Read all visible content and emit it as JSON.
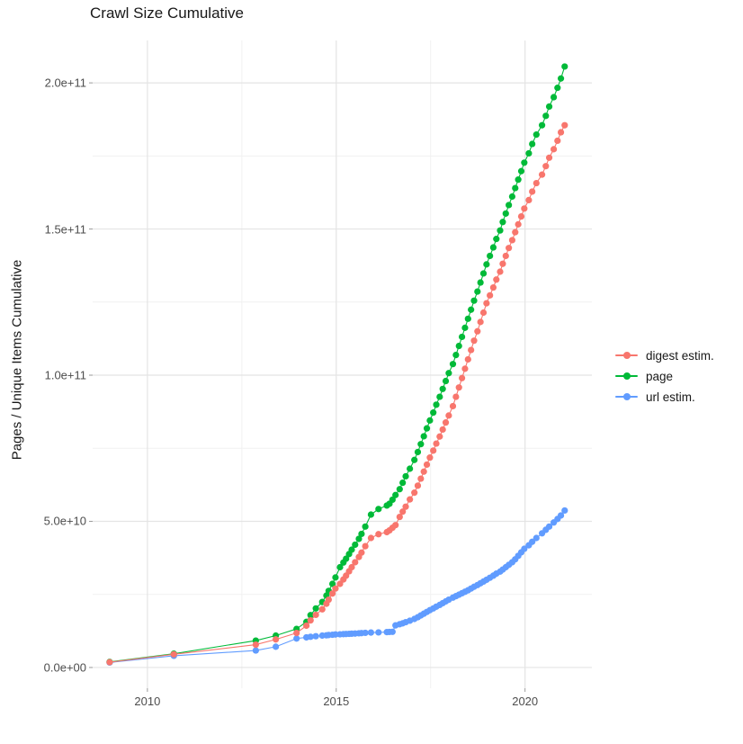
{
  "title": "Crawl Size Cumulative",
  "axes": {
    "y_label": "Pages / Unique Items Cumulative",
    "x_tick_labels": [
      "2010",
      "2015",
      "2020"
    ],
    "y_tick_labels": [
      "0.0e+00",
      "5.0e+10",
      "1.0e+11",
      "1.5e+11",
      "2.0e+11"
    ]
  },
  "legend": {
    "position": "right",
    "items": [
      {
        "label": "digest estim.",
        "color": "#F8766D"
      },
      {
        "label": "page",
        "color": "#00BA38"
      },
      {
        "label": "url estim.",
        "color": "#619CFF"
      }
    ]
  },
  "style_colors": {
    "major_grid": "#e4e4e4",
    "minor_grid": "#f1f1f1",
    "tick_mark": "#9a9a9a",
    "tick_text": "#4d4d4d",
    "title_text": "#181818"
  },
  "chart_data": {
    "type": "scatter",
    "title": "Crawl Size Cumulative",
    "xlabel": "",
    "ylabel": "Pages / Unique Items Cumulative",
    "grid": "on",
    "legend_position": "right",
    "xlim": [
      2008.55,
      2021.77
    ],
    "ylim": [
      -7100000000.0,
      214500000000.0
    ],
    "x_tick_values": [
      2010,
      2015,
      2020
    ],
    "x_tick_labels": [
      "2010",
      "2015",
      "2020"
    ],
    "x_minor_ticks": [
      2012.5,
      2017.5
    ],
    "y_tick_values": [
      0,
      50000000000.0,
      100000000000.0,
      150000000000.0,
      200000000000.0
    ],
    "y_tick_labels": [
      "0.0e+00",
      "5.0e+10",
      "1.0e+11",
      "1.5e+11",
      "2.0e+11"
    ],
    "y_minor_ticks": [
      25000000000.0,
      75000000000.0,
      125000000000.0,
      175000000000.0
    ],
    "x": [
      2009.0,
      2010.7,
      2012.87,
      2013.4,
      2013.95,
      2014.21,
      2014.32,
      2014.46,
      2014.63,
      2014.74,
      2014.8,
      2014.9,
      2014.98,
      2015.1,
      2015.19,
      2015.26,
      2015.34,
      2015.41,
      2015.5,
      2015.6,
      2015.67,
      2015.77,
      2015.92,
      2016.12,
      2016.34,
      2016.41,
      2016.49,
      2016.57,
      2016.68,
      2016.76,
      2016.84,
      2016.95,
      2017.07,
      2017.16,
      2017.24,
      2017.32,
      2017.4,
      2017.48,
      2017.57,
      2017.65,
      2017.74,
      2017.82,
      2017.9,
      2017.98,
      2018.09,
      2018.17,
      2018.25,
      2018.33,
      2018.41,
      2018.49,
      2018.57,
      2018.65,
      2018.74,
      2018.82,
      2018.9,
      2018.98,
      2019.07,
      2019.16,
      2019.24,
      2019.34,
      2019.41,
      2019.49,
      2019.57,
      2019.66,
      2019.74,
      2019.82,
      2019.9,
      2019.98,
      2020.1,
      2020.19,
      2020.3,
      2020.45,
      2020.55,
      2020.64,
      2020.76,
      2020.86,
      2020.95,
      2021.05
    ],
    "series": [
      {
        "name": "url estim.",
        "color": "#619CFF",
        "values": [
          1700000000.0,
          4000000000.0,
          5800000000.0,
          7100000000.0,
          9900000000.0,
          10300000000.0,
          10500000000.0,
          10700000000.0,
          10900000000.0,
          11000000000.0,
          11100000000.0,
          11200000000.0,
          11300000000.0,
          11350000000.0,
          11400000000.0,
          11450000000.0,
          11500000000.0,
          11550000000.0,
          11600000000.0,
          11700000000.0,
          11750000000.0,
          11850000000.0,
          11950000000.0,
          12000000000.0,
          12100000000.0,
          12150000000.0,
          12200000000.0,
          14400000000.0,
          14800000000.0,
          15100000000.0,
          15500000000.0,
          16000000000.0,
          16600000000.0,
          17200000000.0,
          17800000000.0,
          18400000000.0,
          19000000000.0,
          19600000000.0,
          20200000000.0,
          20800000000.0,
          21400000000.0,
          22000000000.0,
          22600000000.0,
          23200000000.0,
          23900000000.0,
          24400000000.0,
          24900000000.0,
          25400000000.0,
          25900000000.0,
          26400000000.0,
          27000000000.0,
          27600000000.0,
          28200000000.0,
          28800000000.0,
          29400000000.0,
          30000000000.0,
          30700000000.0,
          31400000000.0,
          32100000000.0,
          32800000000.0,
          33500000000.0,
          34300000000.0,
          35100000000.0,
          36000000000.0,
          37000000000.0,
          38200000000.0,
          39400000000.0,
          40600000000.0,
          41800000000.0,
          43000000000.0,
          44300000000.0,
          45900000000.0,
          47100000000.0,
          48200000000.0,
          49600000000.0,
          50800000000.0,
          52000000000.0,
          53700000000.0
        ]
      },
      {
        "name": "page",
        "color": "#00BA38",
        "values": [
          1900000000.0,
          4700000000.0,
          9200000000.0,
          10900000000.0,
          13200000000.0,
          15600000000.0,
          17900000000.0,
          20200000000.0,
          22400000000.0,
          24600000000.0,
          26200000000.0,
          28600000000.0,
          30800000000.0,
          34300000000.0,
          35900000000.0,
          37200000000.0,
          38800000000.0,
          40300000000.0,
          42000000000.0,
          44000000000.0,
          45700000000.0,
          48200000000.0,
          52300000000.0,
          54200000000.0,
          55400000000.0,
          56000000000.0,
          57400000000.0,
          59000000000.0,
          61000000000.0,
          63200000000.0,
          65400000000.0,
          68000000000.0,
          71000000000.0,
          73700000000.0,
          76400000000.0,
          79100000000.0,
          81800000000.0,
          84500000000.0,
          87200000000.0,
          89900000000.0,
          92600000000.0,
          95300000000.0,
          98000000000.0,
          100700000000.0,
          103800000000.0,
          106900000000.0,
          110000000000.0,
          113100000000.0,
          116200000000.0,
          119300000000.0,
          122400000000.0,
          125500000000.0,
          128600000000.0,
          131700000000.0,
          134800000000.0,
          137900000000.0,
          140800000000.0,
          143700000000.0,
          146600000000.0,
          149500000000.0,
          152400000000.0,
          155300000000.0,
          158200000000.0,
          161100000000.0,
          164000000000.0,
          166900000000.0,
          169800000000.0,
          172700000000.0,
          175900000000.0,
          179100000000.0,
          182300000000.0,
          185500000000.0,
          188700000000.0,
          191900000000.0,
          195100000000.0,
          198300000000.0,
          201500000000.0,
          205600000000.0
        ]
      },
      {
        "name": "digest estim.",
        "color": "#F8766D",
        "values": [
          1800000000.0,
          4500000000.0,
          7800000000.0,
          9600000000.0,
          11800000000.0,
          14300000000.0,
          16100000000.0,
          18000000000.0,
          19900000000.0,
          21800000000.0,
          23200000000.0,
          25300000000.0,
          27000000000.0,
          28600000000.0,
          30100000000.0,
          31400000000.0,
          32900000000.0,
          34300000000.0,
          36000000000.0,
          37800000000.0,
          39300000000.0,
          41500000000.0,
          44300000000.0,
          45600000000.0,
          46300000000.0,
          46900000000.0,
          47800000000.0,
          48700000000.0,
          51500000000.0,
          53300000000.0,
          55000000000.0,
          57500000000.0,
          59800000000.0,
          62200000000.0,
          64600000000.0,
          67000000000.0,
          69400000000.0,
          71800000000.0,
          74200000000.0,
          76600000000.0,
          79000000000.0,
          81400000000.0,
          83800000000.0,
          86200000000.0,
          89400000000.0,
          92600000000.0,
          95800000000.0,
          99000000000.0,
          102200000000.0,
          105400000000.0,
          108600000000.0,
          111800000000.0,
          115000000000.0,
          118200000000.0,
          121400000000.0,
          124600000000.0,
          127300000000.0,
          130000000000.0,
          132700000000.0,
          135400000000.0,
          138100000000.0,
          140800000000.0,
          143500000000.0,
          146200000000.0,
          148900000000.0,
          151600000000.0,
          154300000000.0,
          157000000000.0,
          159900000000.0,
          162800000000.0,
          165700000000.0,
          168600000000.0,
          171500000000.0,
          174400000000.0,
          177300000000.0,
          180200000000.0,
          183100000000.0,
          185500000000.0
        ]
      }
    ]
  }
}
